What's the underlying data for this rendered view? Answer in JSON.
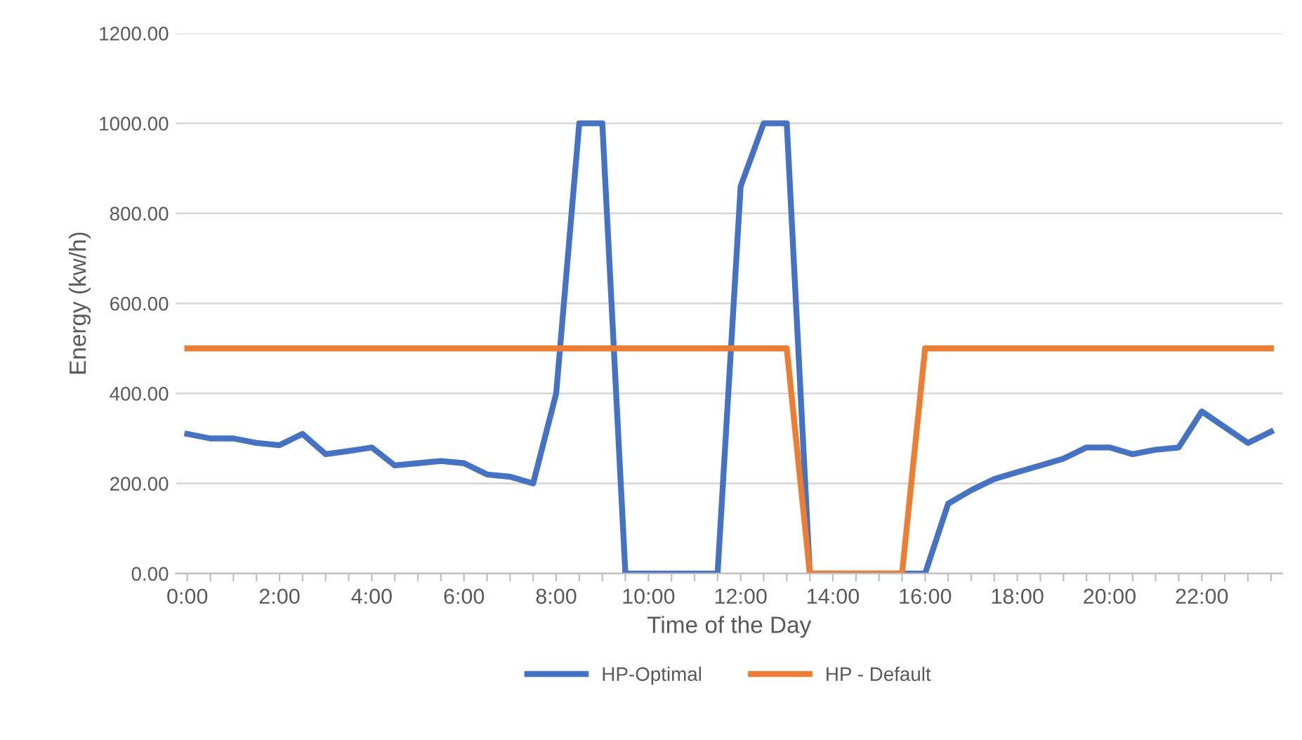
{
  "chart_data": {
    "type": "line",
    "xlabel": "Time of the Day",
    "ylabel": "Energy (kw/h)",
    "categories": [
      "0:00",
      null,
      null,
      null,
      "2:00",
      null,
      null,
      null,
      "4:00",
      null,
      null,
      null,
      "6:00",
      null,
      null,
      null,
      "8:00",
      null,
      null,
      null,
      "10:00",
      null,
      null,
      null,
      "12:00",
      null,
      null,
      null,
      "14:00",
      null,
      null,
      null,
      "16:00",
      null,
      null,
      null,
      "18:00",
      null,
      null,
      null,
      "20:00",
      null,
      null,
      null,
      "22:00",
      null,
      null,
      null
    ],
    "series": [
      {
        "name": "HP-Optimal",
        "color": "#4472c4",
        "values": [
          310,
          300,
          300,
          290,
          285,
          310,
          265,
          272,
          280,
          240,
          245,
          250,
          245,
          220,
          215,
          200,
          400,
          1000,
          1000,
          0,
          0,
          0,
          0,
          0,
          860,
          1000,
          1000,
          0,
          0,
          0,
          0,
          0,
          0,
          155,
          185,
          210,
          225,
          240,
          255,
          280,
          280,
          265,
          275,
          280,
          360,
          325,
          290,
          315
        ]
      },
      {
        "name": "HP - Default",
        "color": "#ed7d31",
        "values": [
          500,
          500,
          500,
          500,
          500,
          500,
          500,
          500,
          500,
          500,
          500,
          500,
          500,
          500,
          500,
          500,
          500,
          500,
          500,
          500,
          500,
          500,
          500,
          500,
          500,
          500,
          500,
          0,
          0,
          0,
          0,
          0,
          500,
          500,
          500,
          500,
          500,
          500,
          500,
          500,
          500,
          500,
          500,
          500,
          500,
          500,
          500,
          500
        ]
      }
    ],
    "ylim": [
      0,
      1200
    ],
    "yticks": [
      {
        "value": 0,
        "label": "0.00"
      },
      {
        "value": 200,
        "label": "200.00"
      },
      {
        "value": 400,
        "label": "400.00"
      },
      {
        "value": 600,
        "label": "600.00"
      },
      {
        "value": 800,
        "label": "800.00"
      },
      {
        "value": 1000,
        "label": "1000.00"
      },
      {
        "value": 1200,
        "label": "1200.00"
      }
    ],
    "grid": "y",
    "legend": "bottom",
    "marker": "none",
    "line_style": "solid"
  }
}
